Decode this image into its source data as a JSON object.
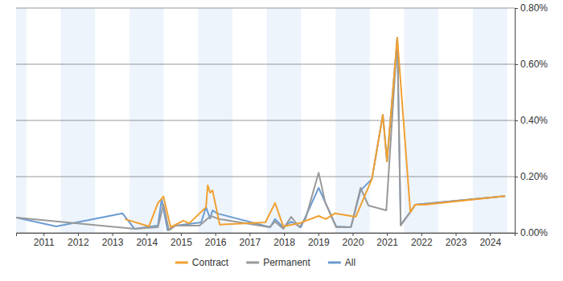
{
  "chart_data": {
    "type": "line",
    "xlim": [
      2010.2,
      2024.72
    ],
    "xticks": [
      2011,
      2012,
      2013,
      2014,
      2015,
      2016,
      2017,
      2018,
      2019,
      2020,
      2021,
      2022,
      2023,
      2024
    ],
    "ylim": [
      0,
      0.8
    ],
    "yticks": [
      {
        "value": 0,
        "label": "0.00%"
      },
      {
        "value": 0.2,
        "label": "0.20%"
      },
      {
        "value": 0.4,
        "label": "0.40%"
      },
      {
        "value": 0.6,
        "label": "0.60%"
      },
      {
        "value": 0.8,
        "label": "0.80%"
      }
    ],
    "grid": true,
    "legend": "bottom",
    "series": [
      {
        "name": "Contract",
        "color": "#f0a030",
        "x": [
          2013.37,
          2014.07,
          2014.33,
          2014.49,
          2014.7,
          2015.07,
          2015.24,
          2015.73,
          2015.78,
          2015.85,
          2015.92,
          2016.13,
          2017.46,
          2017.74,
          2017.98,
          2018.45,
          2019.01,
          2019.22,
          2019.48,
          2020.09,
          2020.56,
          2020.88,
          2021.0,
          2021.3,
          2021.68,
          2021.82,
          2022.1,
          2024.44
        ],
        "values": [
          0.049,
          0.023,
          0.106,
          0.129,
          0.02,
          0.043,
          0.034,
          0.091,
          0.169,
          0.143,
          0.151,
          0.029,
          0.037,
          0.106,
          0.023,
          0.034,
          0.06,
          0.049,
          0.069,
          0.057,
          0.191,
          0.42,
          0.254,
          0.694,
          0.074,
          0.1,
          0.1,
          0.131
        ]
      },
      {
        "name": "Permanent",
        "color": "#999999",
        "x": [
          2010.2,
          2013.65,
          2014.33,
          2014.49,
          2014.65,
          2014.84,
          2015.54,
          2015.87,
          2016.11,
          2017.58,
          2017.74,
          2017.98,
          2018.21,
          2018.45,
          2018.63,
          2019.01,
          2019.2,
          2019.52,
          2019.95,
          2020.23,
          2020.46,
          2020.98,
          2021.3,
          2021.4,
          2021.68,
          2021.82,
          2024.44
        ],
        "values": [
          0.054,
          0.014,
          0.02,
          0.1,
          0.009,
          0.026,
          0.026,
          0.06,
          0.049,
          0.02,
          0.04,
          0.014,
          0.057,
          0.02,
          0.051,
          0.214,
          0.109,
          0.02,
          0.02,
          0.16,
          0.097,
          0.08,
          0.694,
          0.026,
          0.074,
          0.1,
          0.131
        ]
      },
      {
        "name": "All",
        "color": "#6b9bd1",
        "x": [
          2010.2,
          2011.37,
          2013.3,
          2013.65,
          2014.33,
          2014.44,
          2014.61,
          2014.84,
          2015.59,
          2015.73,
          2015.85,
          2015.92,
          2016.06,
          2017.6,
          2017.74,
          2017.98,
          2018.21,
          2018.49,
          2019.01,
          2019.52,
          2019.95,
          2020.23,
          2020.56,
          2020.88,
          2021.0,
          2021.3,
          2021.4,
          2021.68,
          2021.82,
          2024.44
        ],
        "values": [
          0.054,
          0.023,
          0.069,
          0.014,
          0.026,
          0.12,
          0.009,
          0.026,
          0.037,
          0.091,
          0.051,
          0.08,
          0.069,
          0.02,
          0.049,
          0.02,
          0.04,
          0.02,
          0.16,
          0.023,
          0.02,
          0.151,
          0.191,
          0.42,
          0.254,
          0.694,
          0.029,
          0.074,
          0.1,
          0.131
        ]
      }
    ]
  }
}
